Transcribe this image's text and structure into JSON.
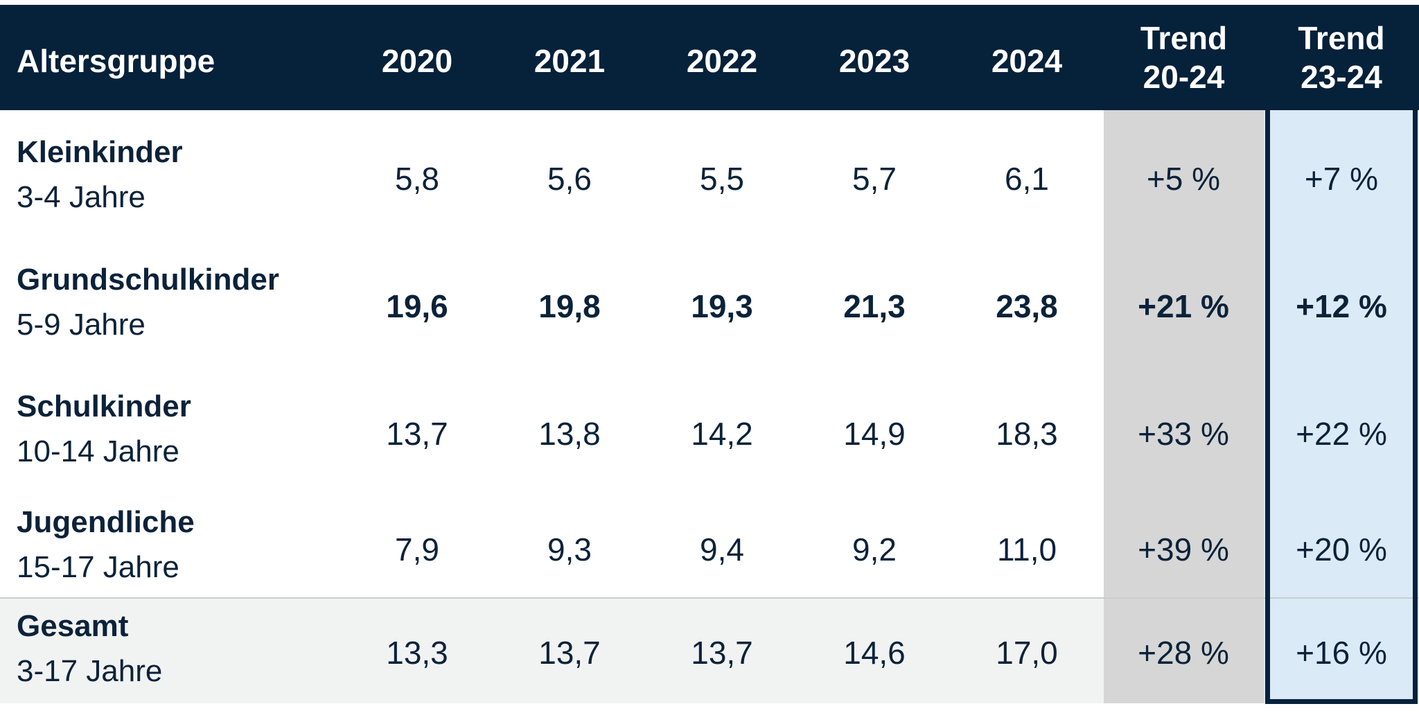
{
  "chart_data": {
    "type": "table",
    "columns": [
      "Altersgruppe",
      "2020",
      "2021",
      "2022",
      "2023",
      "2024",
      "Trend 20-24",
      "Trend 23-24"
    ],
    "header": {
      "group": "Altersgruppe",
      "years": [
        "2020",
        "2021",
        "2022",
        "2023",
        "2024"
      ],
      "trend1": [
        "Trend",
        "20-24"
      ],
      "trend2": [
        "Trend",
        "23-24"
      ]
    },
    "rows": [
      {
        "name": "Kleinkinder",
        "age": "3-4 Jahre",
        "values": [
          "5,8",
          "5,6",
          "5,5",
          "5,7",
          "6,1"
        ],
        "trend_20_24": "+5 %",
        "trend_23_24": "+7 %"
      },
      {
        "name": "Grundschulkinder",
        "age": "5-9 Jahre",
        "values": [
          "19,6",
          "19,8",
          "19,3",
          "21,3",
          "23,8"
        ],
        "trend_20_24": "+21 %",
        "trend_23_24": "+12 %"
      },
      {
        "name": "Schulkinder",
        "age": "10-14 Jahre",
        "values": [
          "13,7",
          "13,8",
          "14,2",
          "14,9",
          "18,3"
        ],
        "trend_20_24": "+33 %",
        "trend_23_24": "+22 %"
      },
      {
        "name": "Jugendliche",
        "age": "15-17 Jahre",
        "values": [
          "7,9",
          "9,3",
          "9,4",
          "9,2",
          "11,0"
        ],
        "trend_20_24": "+39 %",
        "trend_23_24": "+20 %"
      },
      {
        "name": "Gesamt",
        "age": "3-17 Jahre",
        "values": [
          "13,3",
          "13,7",
          "13,7",
          "14,6",
          "17,0"
        ],
        "trend_20_24": "+28 %",
        "trend_23_24": "+16 %"
      }
    ],
    "bold_row": "Grundschulkinder",
    "highlighted_column": "Trend 23-24"
  },
  "colors": {
    "header_bg": "#06213a",
    "header_text": "#ffffff",
    "body_text": "#0b2239",
    "trend1_bg": "#d6d6d6",
    "trend2_bg": "#dbeaf7",
    "total_row_bg": "#f1f2f2"
  }
}
